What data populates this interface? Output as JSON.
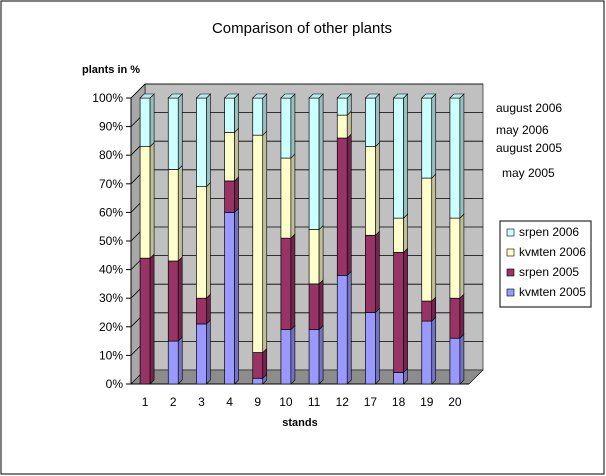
{
  "chart_data": {
    "type": "bar",
    "stacked": "percent",
    "title": "Comparison of other plants",
    "ylabel": "plants in %",
    "xlabel": "stands",
    "ylim": [
      0,
      100
    ],
    "yticks": [
      "0%",
      "10%",
      "20%",
      "30%",
      "40%",
      "50%",
      "60%",
      "70%",
      "80%",
      "90%",
      "100%"
    ],
    "categories": [
      "1",
      "2",
      "3",
      "4",
      "9",
      "10",
      "11",
      "12",
      "17",
      "18",
      "19",
      "20"
    ],
    "series": [
      {
        "name": "kvмten  2005",
        "color": "#9999ff",
        "values": [
          0,
          15,
          21,
          60,
          2,
          19,
          19,
          38,
          25,
          4,
          22,
          16
        ]
      },
      {
        "name": "srpen 2005",
        "color": "#993366",
        "values": [
          44,
          28,
          9,
          11,
          9,
          32,
          16,
          48,
          27,
          42,
          7,
          14
        ]
      },
      {
        "name": "kvмten 2006",
        "color": "#ffffcc",
        "values": [
          39,
          32,
          39,
          17,
          76,
          28,
          19,
          8,
          31,
          12,
          43,
          28
        ]
      },
      {
        "name": "srpen 2006",
        "color": "#ccffff",
        "values": [
          17,
          25,
          31,
          12,
          13,
          21,
          46,
          6,
          17,
          42,
          28,
          42
        ]
      }
    ],
    "legend_position": "right",
    "annotations": [
      "august 2006",
      "may 2006",
      "august 2005",
      "may 2005"
    ],
    "grid": true,
    "plot_background": "#c0c0c0"
  }
}
